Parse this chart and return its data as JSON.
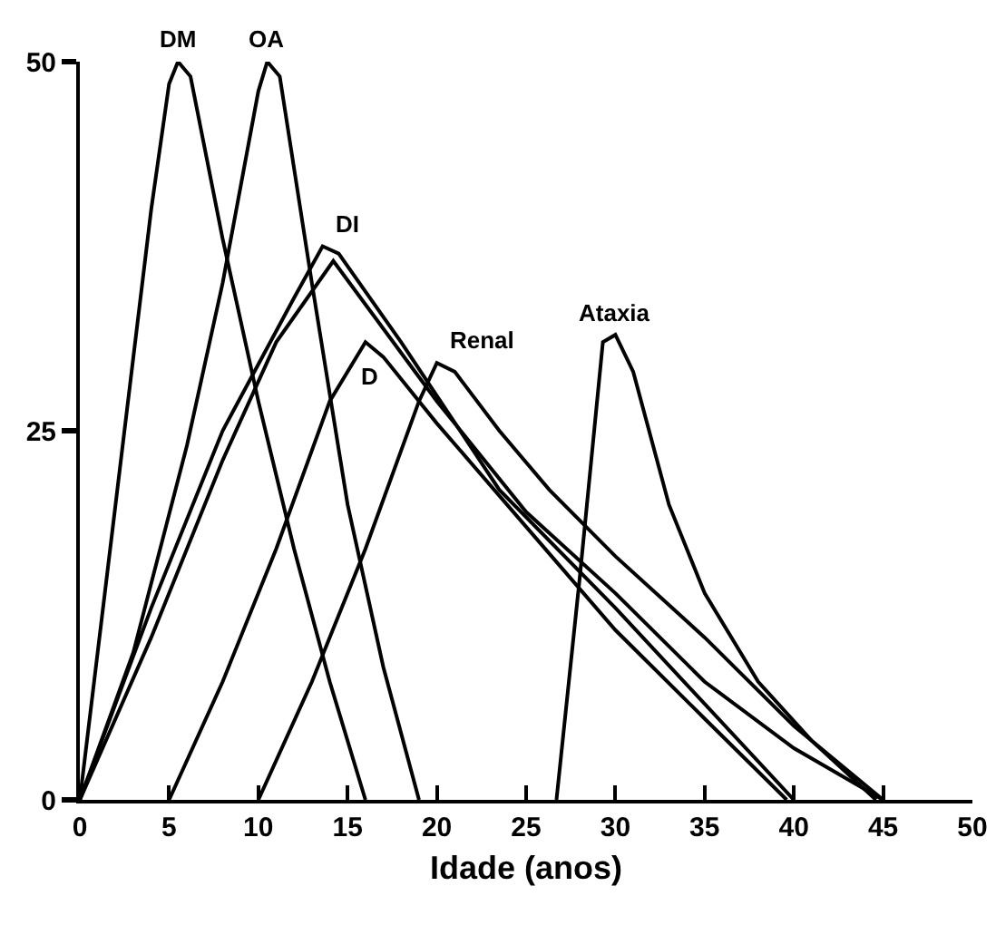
{
  "chart_data": {
    "type": "line",
    "xlabel": "Idade (anos)",
    "xlim": [
      0,
      50
    ],
    "xticks": [
      0,
      5,
      10,
      15,
      20,
      25,
      30,
      35,
      40,
      45,
      50
    ],
    "ylim": [
      0,
      50
    ],
    "yticks": [
      0,
      25,
      50
    ],
    "grid": false,
    "legend": false,
    "marker": "none",
    "line_style": "solid",
    "series": [
      {
        "name": "DM",
        "color": "#000000",
        "x": [
          0,
          2,
          4,
          5,
          5.5,
          6.2,
          8,
          10,
          12,
          14,
          16
        ],
        "values": [
          0,
          20,
          40,
          48.5,
          50,
          49,
          38,
          27,
          17,
          8,
          0
        ]
      },
      {
        "name": "OA",
        "color": "#000000",
        "x": [
          0,
          3,
          6,
          8,
          10,
          10.5,
          11.2,
          13,
          15,
          17,
          19
        ],
        "values": [
          0,
          10,
          24,
          35,
          48,
          50,
          49,
          35,
          20,
          9,
          0
        ]
      },
      {
        "name": "DI",
        "color": "#000000",
        "x": [
          0,
          4,
          8,
          12,
          13.6,
          14.5,
          18,
          23.5,
          30,
          35,
          40
        ],
        "values": [
          0,
          13,
          25,
          34,
          37.5,
          37,
          31,
          21,
          13,
          6.5,
          0
        ]
      },
      {
        "name": "D",
        "color": "#000000",
        "x": [
          5,
          8,
          11,
          14,
          16,
          17,
          20,
          25,
          30,
          35,
          39.6
        ],
        "values": [
          0,
          8,
          17,
          27,
          31,
          30,
          25.5,
          18.5,
          11.5,
          5.5,
          0
        ]
      },
      {
        "name": "Renal",
        "color": "#000000",
        "x": [
          10,
          13,
          16,
          19,
          20,
          21,
          23.5,
          26.3,
          30,
          35,
          40,
          45
        ],
        "values": [
          0,
          8,
          17,
          27,
          29.6,
          29,
          25,
          21,
          16.5,
          11,
          5,
          0
        ]
      },
      {
        "name": "Ataxia",
        "color": "#000000",
        "x": [
          26.7,
          28,
          29.3,
          30,
          31,
          33,
          35,
          38,
          41,
          44.6
        ],
        "values": [
          0,
          15,
          31,
          31.5,
          29,
          20,
          14,
          8,
          4,
          0
        ]
      },
      {
        "color": "#000000",
        "x": [
          0,
          4,
          8,
          11,
          14.2,
          20,
          25,
          30,
          35,
          40,
          45
        ],
        "values": [
          0,
          11,
          23,
          31,
          36.5,
          27,
          19.5,
          14,
          8,
          3.5,
          0
        ]
      }
    ]
  }
}
